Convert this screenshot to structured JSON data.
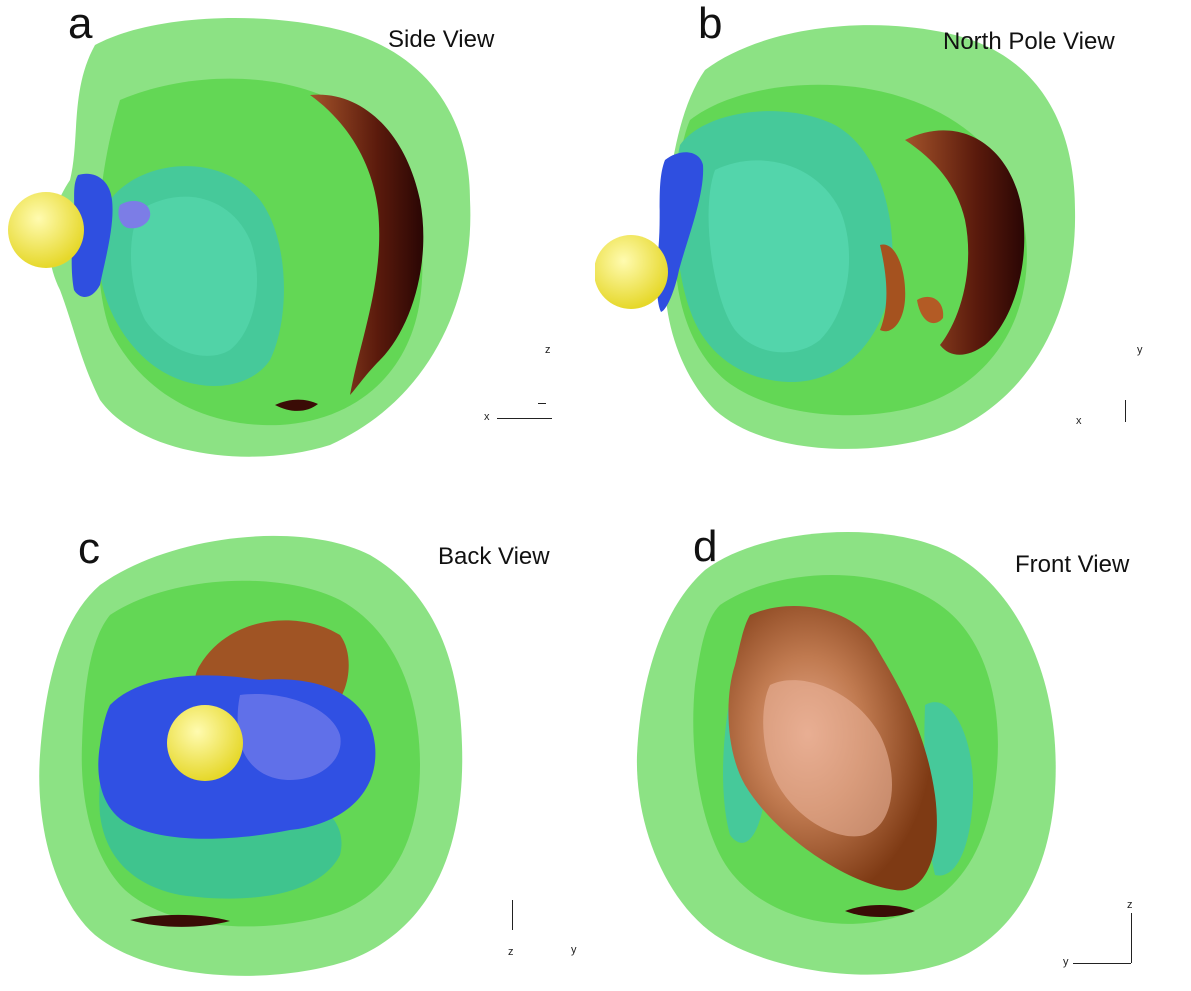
{
  "panels": [
    {
      "id": "a",
      "letter": "a",
      "title": "Side View",
      "axis_labels": {
        "horizontal": "x",
        "vertical": "z"
      }
    },
    {
      "id": "b",
      "letter": "b",
      "title": "North Pole View",
      "axis_labels": {
        "horizontal": "x",
        "vertical": "y"
      }
    },
    {
      "id": "c",
      "letter": "c",
      "title": "Back View",
      "axis_labels": {
        "horizontal": "y",
        "vertical": "z"
      }
    },
    {
      "id": "d",
      "letter": "d",
      "title": "Front View",
      "axis_labels": {
        "horizontal": "y",
        "vertical": "z"
      }
    }
  ],
  "colors": {
    "outer_shell": "#7fe07a",
    "middle_shell": "#4fd34a",
    "inner_core": "#45c99a",
    "dark_surface": "#4a1208",
    "brown_surface": "#9a4a1e",
    "blue_structure": "#2f4fe0",
    "sphere": "#f2e640"
  }
}
